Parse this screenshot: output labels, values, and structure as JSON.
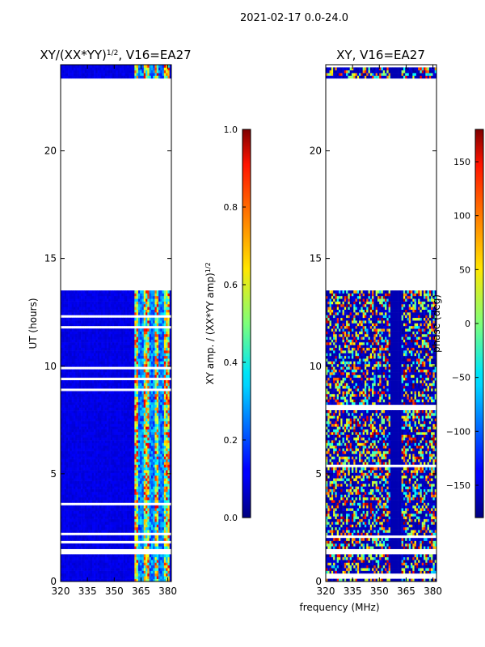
{
  "suptitle": "2021-02-17 0.0-24.0",
  "xlabel": "frequency (MHz)",
  "colors": {
    "axes": "#000000",
    "background": "#ffffff",
    "gap": "#ffffff"
  },
  "chart_data": [
    {
      "type": "heatmap",
      "title": "XY/(XX*YY)",
      "title_superscript": "1/2",
      "title_suffix": ", V16=EA27",
      "ylabel": "UT (hours)",
      "xlim": [
        320,
        382
      ],
      "ylim": [
        0,
        24
      ],
      "xticks": [
        320,
        335,
        350,
        365,
        380
      ],
      "yticks": [
        0,
        5,
        10,
        15,
        20
      ],
      "colorbar": {
        "label": "XY amp. / (XX*YY amp)",
        "label_superscript": "1/2",
        "range": [
          0.0,
          1.0
        ],
        "ticks": [
          0.0,
          0.2,
          0.4,
          0.6,
          0.8,
          1.0
        ],
        "tick_labels": [
          "0.0",
          "0.2",
          "0.4",
          "0.6",
          "0.8",
          "1.0"
        ],
        "colormap": "jet"
      },
      "data_hours": [
        [
          0.0,
          1.3
        ],
        [
          1.5,
          13.6
        ],
        [
          23.3,
          24.0
        ]
      ],
      "blank_hours": [
        [
          13.6,
          23.3
        ]
      ],
      "note": "normalized amplitude low (~0.1) below 360 MHz, bright (0.3-0.9) bands near 362-380 MHz"
    },
    {
      "type": "heatmap",
      "title": "XY, V16=EA27",
      "xlim": [
        320,
        382
      ],
      "ylim": [
        0,
        24
      ],
      "xticks": [
        320,
        335,
        350,
        365,
        380
      ],
      "yticks": [
        0,
        5,
        10,
        15,
        20
      ],
      "colorbar": {
        "label": "phase (deg)",
        "range": [
          -180,
          180
        ],
        "ticks": [
          -150,
          -100,
          -50,
          0,
          50,
          100,
          150
        ],
        "tick_labels": [
          "−150",
          "−100",
          "−50",
          "0",
          "50",
          "100",
          "150"
        ],
        "colormap": "jet"
      },
      "data_hours": [
        [
          0.0,
          1.3
        ],
        [
          1.5,
          13.6
        ],
        [
          23.3,
          24.0
        ]
      ],
      "blank_hours": [
        [
          13.6,
          23.3
        ]
      ],
      "note": "phase varies widely across all frequencies; mostly near -180 deg background"
    }
  ]
}
